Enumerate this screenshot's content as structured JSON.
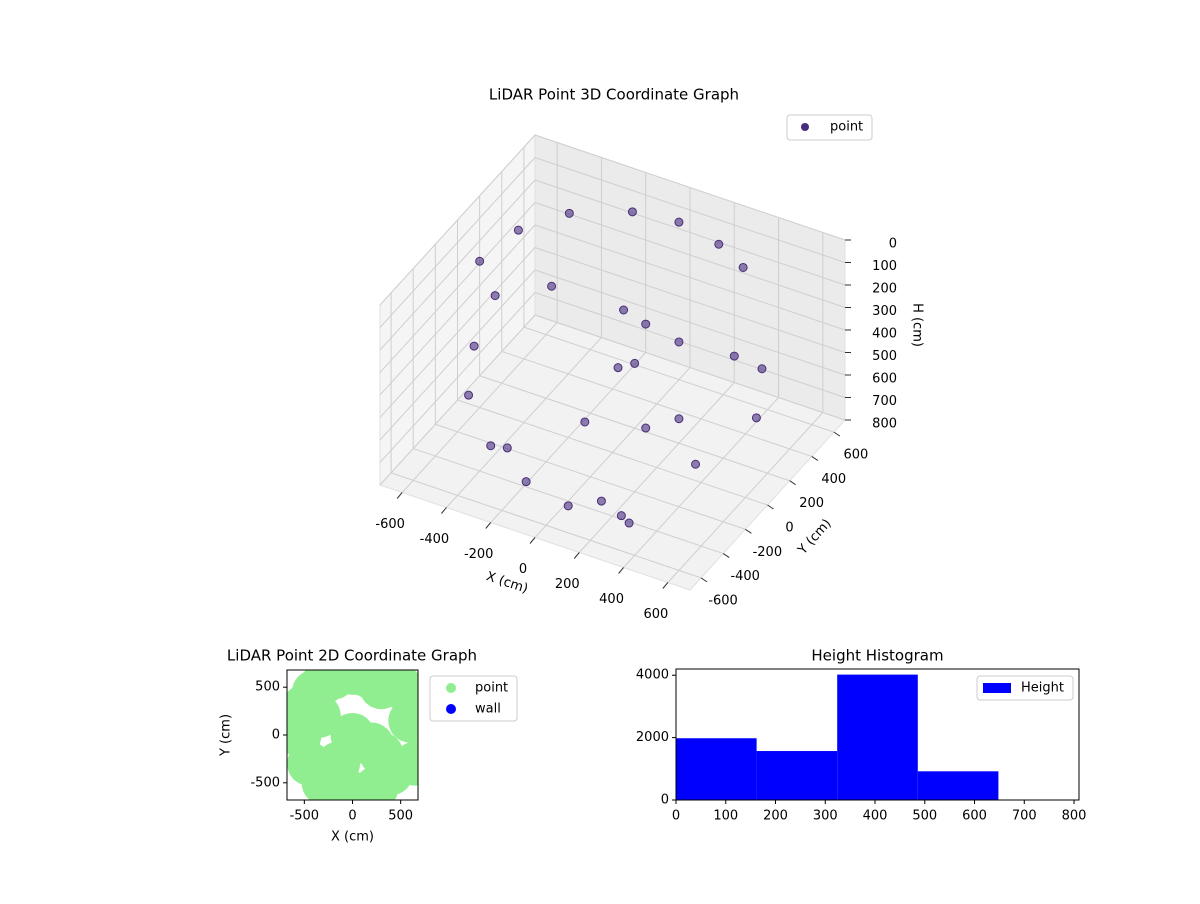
{
  "chart_data": [
    {
      "type": "scatter3d",
      "title": "LiDAR Point 3D Coordinate Graph",
      "xlabel": "X (cm)",
      "ylabel": "Y (cm)",
      "zlabel": "H (cm)",
      "xlim": [
        -700,
        700
      ],
      "ylim": [
        -700,
        700
      ],
      "zlim": [
        800,
        0
      ],
      "xticks": [
        -600,
        -400,
        -200,
        0,
        200,
        400,
        600
      ],
      "yticks": [
        -600,
        -400,
        -200,
        0,
        200,
        400,
        600
      ],
      "zticks": [
        0,
        100,
        200,
        300,
        400,
        500,
        600,
        700,
        800
      ],
      "grid": true,
      "legend": "upper right",
      "series": [
        {
          "name": "point",
          "color": "#472d7b",
          "x": [
            -600,
            -550,
            -420,
            -200,
            0,
            200,
            350,
            -600,
            -500,
            -300,
            -100,
            100,
            300,
            -580,
            -450,
            -250,
            50,
            100,
            150,
            0,
            200,
            250,
            300,
            -50,
            400,
            500,
            550,
            600,
            350,
            150
          ],
          "y": [
            0,
            250,
            450,
            580,
            600,
            560,
            480,
            -50,
            -300,
            -500,
            -580,
            -600,
            -520,
            100,
            350,
            -450,
            0,
            100,
            -100,
            50,
            200,
            -200,
            0,
            -150,
            300,
            350,
            -350,
            100,
            -550,
            -400
          ],
          "z": [
            150,
            130,
            120,
            110,
            100,
            110,
            120,
            500,
            550,
            600,
            650,
            680,
            700,
            350,
            400,
            620,
            150,
            250,
            300,
            450,
            350,
            500,
            550,
            600,
            400,
            450,
            480,
            500,
            700,
            750
          ]
        }
      ]
    },
    {
      "type": "scatter",
      "title": "LiDAR Point 2D Coordinate Graph",
      "xlabel": "X (cm)",
      "ylabel": "Y (cm)",
      "xlim": [
        -680,
        680
      ],
      "ylim": [
        -680,
        680
      ],
      "xticks": [
        -500,
        0,
        500
      ],
      "yticks": [
        -500,
        0,
        500
      ],
      "legend": "outside right",
      "series": [
        {
          "name": "point",
          "color": "#90ee90",
          "x": [
            -550,
            -500,
            -400,
            -300,
            -200,
            -100,
            0,
            100,
            200,
            300,
            -450,
            -300,
            -100,
            100,
            250,
            400,
            500,
            600,
            -350,
            0,
            200,
            650,
            300,
            -150
          ],
          "y": [
            0,
            300,
            450,
            550,
            600,
            650,
            650,
            640,
            600,
            500,
            -300,
            -500,
            -600,
            -620,
            -550,
            -400,
            500,
            150,
            200,
            0,
            -100,
            -300,
            -200,
            -300
          ]
        },
        {
          "name": "wall",
          "color": "#0000ff",
          "x": [],
          "y": []
        }
      ]
    },
    {
      "type": "histogram",
      "title": "Height Histogram",
      "xlim": [
        0,
        810
      ],
      "ylim": [
        0,
        4200
      ],
      "xticks": [
        0,
        100,
        200,
        300,
        400,
        500,
        600,
        700,
        800
      ],
      "yticks": [
        0,
        2000,
        4000
      ],
      "legend": "upper right",
      "series": [
        {
          "name": "Height",
          "color": "#0000ff",
          "bins": [
            0,
            162,
            324,
            486,
            648,
            810
          ],
          "values": [
            1980,
            1570,
            4020,
            920,
            10
          ]
        }
      ]
    }
  ]
}
